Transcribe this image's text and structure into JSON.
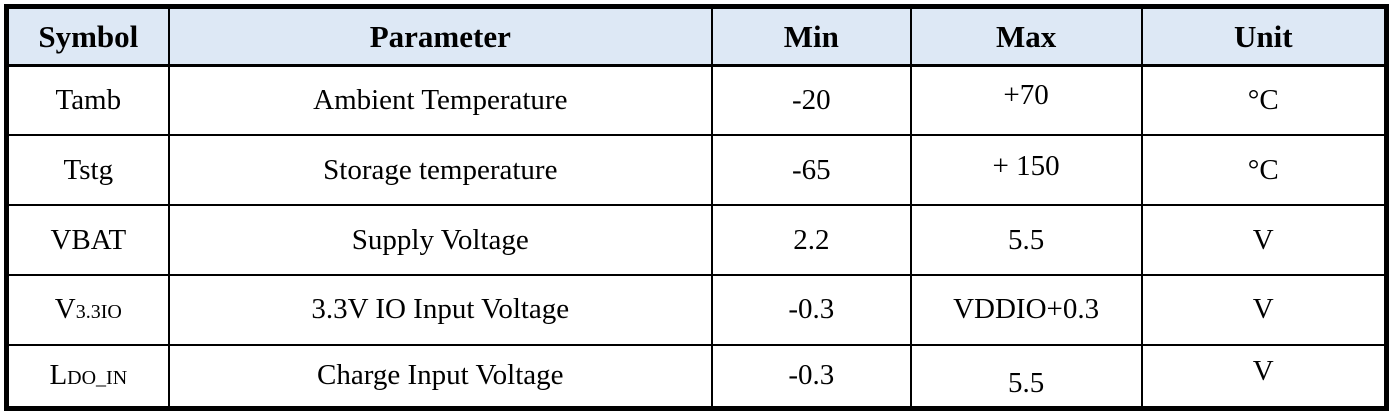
{
  "table": {
    "colors": {
      "header_bg": "#dde8f5",
      "border": "#000000",
      "text": "#000000"
    },
    "columns": [
      {
        "label": "Symbol"
      },
      {
        "label": "Parameter"
      },
      {
        "label": "Min"
      },
      {
        "label": "Max"
      },
      {
        "label": "Unit"
      }
    ],
    "rows": [
      {
        "symbol_main": "Tamb",
        "symbol_small": "",
        "parameter": "Ambient Temperature",
        "min": "-20",
        "max": "+70",
        "unit": "°C"
      },
      {
        "symbol_main": "Tstg",
        "symbol_small": "",
        "parameter": "Storage temperature",
        "min": "-65",
        "max": "+ 150",
        "unit": "°C"
      },
      {
        "symbol_main": "VBAT",
        "symbol_small": "",
        "parameter": "Supply Voltage",
        "min": "2.2",
        "max": "5.5",
        "unit": "V"
      },
      {
        "symbol_main": "V",
        "symbol_small": "3.3IO",
        "parameter": "3.3V IO Input Voltage",
        "min": "-0.3",
        "max": "VDDIO+0.3",
        "unit": "V"
      },
      {
        "symbol_main": "L",
        "symbol_small": "DO_IN",
        "parameter": "Charge Input Voltage",
        "min": "-0.3",
        "max": "5.5",
        "unit": "V"
      }
    ]
  }
}
